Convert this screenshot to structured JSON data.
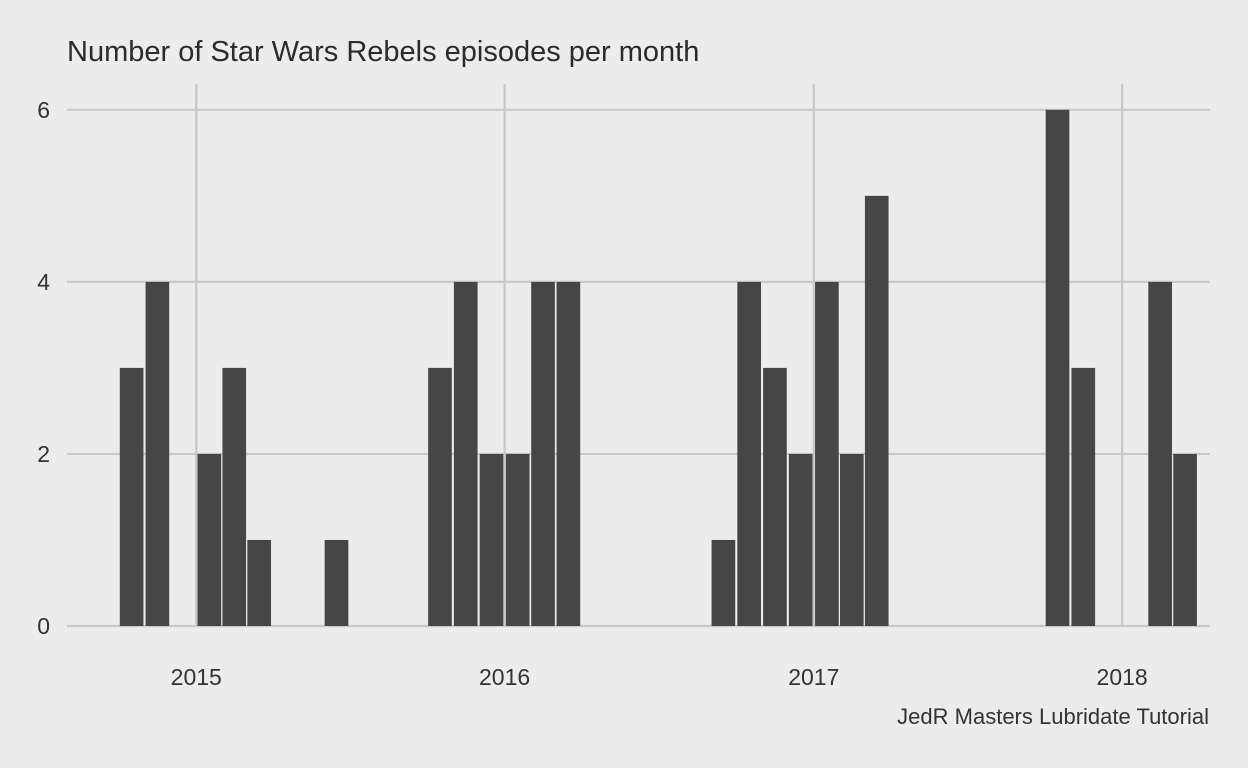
{
  "chart_data": {
    "type": "bar",
    "title": "Number of Star Wars Rebels episodes per month",
    "caption": "JedR Masters Lubridate Tutorial",
    "xlabel": "",
    "ylabel": "",
    "ylim": [
      0,
      6.3
    ],
    "x_axis": "date",
    "xlim": [
      "2014-08-01",
      "2018-04-15"
    ],
    "x_ticks": [
      "2015",
      "2016",
      "2017",
      "2018"
    ],
    "y_ticks": [
      0,
      2,
      4,
      6
    ],
    "grid": true,
    "legend": "none",
    "bar_color": "#464646",
    "background": "#ececec",
    "grid_color": "#c8c8c8",
    "bars": [
      {
        "month": "2014-10",
        "value": 3
      },
      {
        "month": "2014-11",
        "value": 4
      },
      {
        "month": "2015-01",
        "value": 2
      },
      {
        "month": "2015-02",
        "value": 3
      },
      {
        "month": "2015-03",
        "value": 1
      },
      {
        "month": "2015-06",
        "value": 1
      },
      {
        "month": "2015-10",
        "value": 3
      },
      {
        "month": "2015-11",
        "value": 4
      },
      {
        "month": "2015-12",
        "value": 2
      },
      {
        "month": "2016-01",
        "value": 2
      },
      {
        "month": "2016-02",
        "value": 4
      },
      {
        "month": "2016-03",
        "value": 4
      },
      {
        "month": "2016-09",
        "value": 1
      },
      {
        "month": "2016-10",
        "value": 4
      },
      {
        "month": "2016-11",
        "value": 3
      },
      {
        "month": "2016-12",
        "value": 2
      },
      {
        "month": "2017-01",
        "value": 4
      },
      {
        "month": "2017-02",
        "value": 2
      },
      {
        "month": "2017-03",
        "value": 5
      },
      {
        "month": "2017-10",
        "value": 6
      },
      {
        "month": "2017-11",
        "value": 3
      },
      {
        "month": "2018-02",
        "value": 4
      },
      {
        "month": "2018-03",
        "value": 2
      }
    ]
  }
}
